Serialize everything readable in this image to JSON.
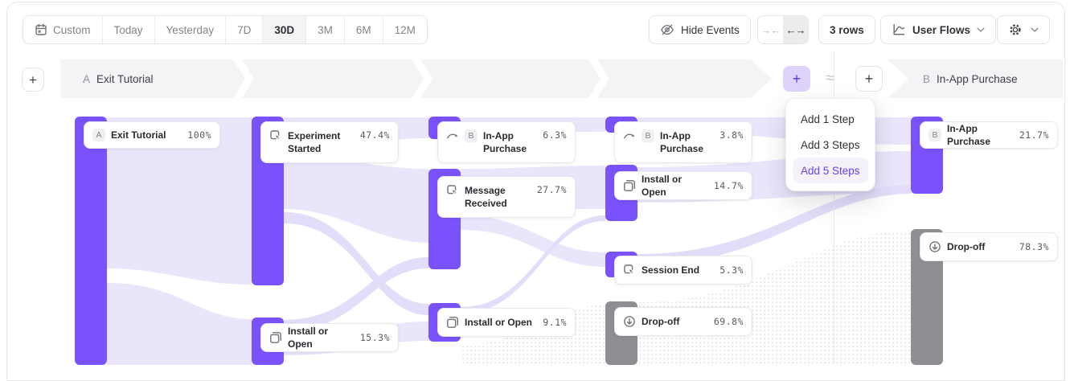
{
  "toolbar": {
    "date_ranges": [
      {
        "label": "Custom",
        "icon": "calendar-icon",
        "active": false
      },
      {
        "label": "Today",
        "active": false
      },
      {
        "label": "Yesterday",
        "active": false
      },
      {
        "label": "7D",
        "active": false
      },
      {
        "label": "30D",
        "active": true
      },
      {
        "label": "3M",
        "active": false
      },
      {
        "label": "6M",
        "active": false
      },
      {
        "label": "12M",
        "active": false
      }
    ],
    "hide_events_label": "Hide Events",
    "collapse_symbol": "→←",
    "expand_symbol": "←→",
    "rows_label": "3 rows",
    "view_selector_label": "User Flows"
  },
  "header": {
    "add_column_left": "+",
    "step_a_letter": "A",
    "step_a_label": "Exit Tutorial",
    "add_step_left": "+",
    "approx_symbol": "≈",
    "add_step_right": "+",
    "step_b_letter": "B",
    "step_b_label": "In-App Purchase"
  },
  "add_step_menu": {
    "items": [
      {
        "label": "Add 1 Step",
        "active": false
      },
      {
        "label": "Add 3 Steps",
        "active": false
      },
      {
        "label": "Add 5 Steps",
        "active": true
      }
    ]
  },
  "chart_data": {
    "type": "sankey",
    "view": "User Flows",
    "date_range": "30D",
    "start_event": {
      "letter": "A",
      "label": "Exit Tutorial"
    },
    "end_event": {
      "letter": "B",
      "label": "In-App Purchase"
    },
    "columns": [
      {
        "nodes": [
          {
            "id": "0-0",
            "label": "Exit Tutorial",
            "pct": "100%",
            "letter": "A",
            "kind": "event"
          }
        ]
      },
      {
        "nodes": [
          {
            "id": "1-0",
            "label": "Experiment Started",
            "pct": "47.4%",
            "icon": "event-icon",
            "kind": "event"
          },
          {
            "id": "1-1",
            "label": "Install or Open",
            "pct": "15.3%",
            "icon": "copy-icon",
            "kind": "event"
          }
        ]
      },
      {
        "nodes": [
          {
            "id": "2-0",
            "label": "In-App Purchase",
            "pct": "6.3%",
            "icon": "jump-icon",
            "letter": "B",
            "kind": "conversion"
          },
          {
            "id": "2-1",
            "label": "Message Received",
            "pct": "27.7%",
            "icon": "event-icon",
            "kind": "event"
          },
          {
            "id": "2-2",
            "label": "Install or Open",
            "pct": "9.1%",
            "icon": "copy-icon",
            "kind": "event"
          }
        ]
      },
      {
        "nodes": [
          {
            "id": "3-0",
            "label": "In-App Purchase",
            "pct": "3.8%",
            "icon": "jump-icon",
            "letter": "B",
            "kind": "conversion"
          },
          {
            "id": "3-1",
            "label": "Install or Open",
            "pct": "14.7%",
            "icon": "copy-icon",
            "kind": "event"
          },
          {
            "id": "3-2",
            "label": "Session End",
            "pct": "5.3%",
            "icon": "event-icon",
            "kind": "event"
          },
          {
            "id": "3-3",
            "label": "Drop-off",
            "pct": "69.8%",
            "icon": "dropoff-icon",
            "kind": "dropoff"
          }
        ]
      },
      {
        "nodes": [
          {
            "id": "4-0",
            "label": "In-App Purchase",
            "pct": "21.7%",
            "letter": "B",
            "kind": "conversion"
          },
          {
            "id": "4-1",
            "label": "Drop-off",
            "pct": "78.3%",
            "icon": "dropoff-icon",
            "kind": "dropoff"
          }
        ]
      }
    ]
  },
  "colors": {
    "node_purple": "#7a52fb",
    "node_gray": "#8e8e93",
    "ribbon": "#eae5fb",
    "accent_purple": "#6c3ef0",
    "banner_bg": "#f4f4f6"
  }
}
